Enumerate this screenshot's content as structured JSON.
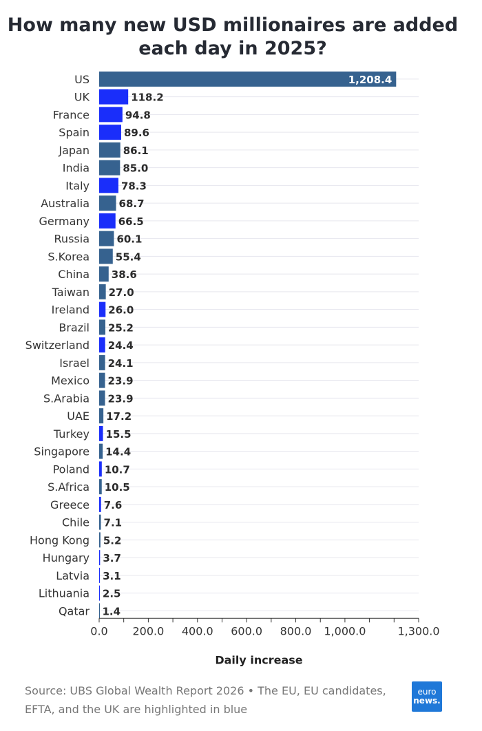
{
  "title_lines": [
    "How many new USD millionaires are added",
    "each day in 2025?"
  ],
  "footer_text": "Source: UBS Global Wealth Report 2026 • The EU, EU candidates, EFTA, and the UK are highlighted in blue",
  "logo": {
    "line1": "euro",
    "line2": "news."
  },
  "colors": {
    "highlight": "#1a2efa",
    "other": "#36628f",
    "grid": "#e6e6ee",
    "axis": "#333333"
  },
  "chart_data": {
    "type": "bar",
    "orientation": "horizontal",
    "title": "How many new USD millionaires are added each day in 2025?",
    "xlabel": "Daily increase",
    "ylabel": "",
    "xlim": [
      0,
      1300
    ],
    "xticks": [
      0,
      200,
      400,
      600,
      800,
      1000,
      1300
    ],
    "xtick_labels": [
      "0.0",
      "200.0",
      "400.0",
      "600.0",
      "800.0",
      "1,000.0",
      "1,300.0"
    ],
    "categories": [
      "US",
      "UK",
      "France",
      "Spain",
      "Japan",
      "India",
      "Italy",
      "Australia",
      "Germany",
      "Russia",
      "S.Korea",
      "China",
      "Taiwan",
      "Ireland",
      "Brazil",
      "Switzerland",
      "Israel",
      "Mexico",
      "S.Arabia",
      "UAE",
      "Turkey",
      "Singapore",
      "Poland",
      "S.Africa",
      "Greece",
      "Chile",
      "Hong Kong",
      "Hungary",
      "Latvia",
      "Lithuania",
      "Qatar"
    ],
    "values": [
      1208.4,
      118.2,
      94.8,
      89.6,
      86.1,
      85.0,
      78.3,
      68.7,
      66.5,
      60.1,
      55.4,
      38.6,
      27.0,
      26.0,
      25.2,
      24.4,
      24.1,
      23.9,
      23.9,
      17.2,
      15.5,
      14.4,
      10.7,
      10.5,
      7.6,
      7.1,
      5.2,
      3.7,
      3.1,
      2.5,
      1.4
    ],
    "value_labels": [
      "1,208.4",
      "118.2",
      "94.8",
      "89.6",
      "86.1",
      "85.0",
      "78.3",
      "68.7",
      "66.5",
      "60.1",
      "55.4",
      "38.6",
      "27.0",
      "26.0",
      "25.2",
      "24.4",
      "24.1",
      "23.9",
      "23.9",
      "17.2",
      "15.5",
      "14.4",
      "10.7",
      "10.5",
      "7.6",
      "7.1",
      "5.2",
      "3.7",
      "3.1",
      "2.5",
      "1.4"
    ],
    "highlighted": [
      false,
      true,
      true,
      true,
      false,
      false,
      true,
      false,
      true,
      false,
      false,
      false,
      false,
      true,
      false,
      true,
      false,
      false,
      false,
      false,
      true,
      false,
      true,
      false,
      true,
      false,
      false,
      true,
      true,
      true,
      false
    ],
    "grid": true
  }
}
